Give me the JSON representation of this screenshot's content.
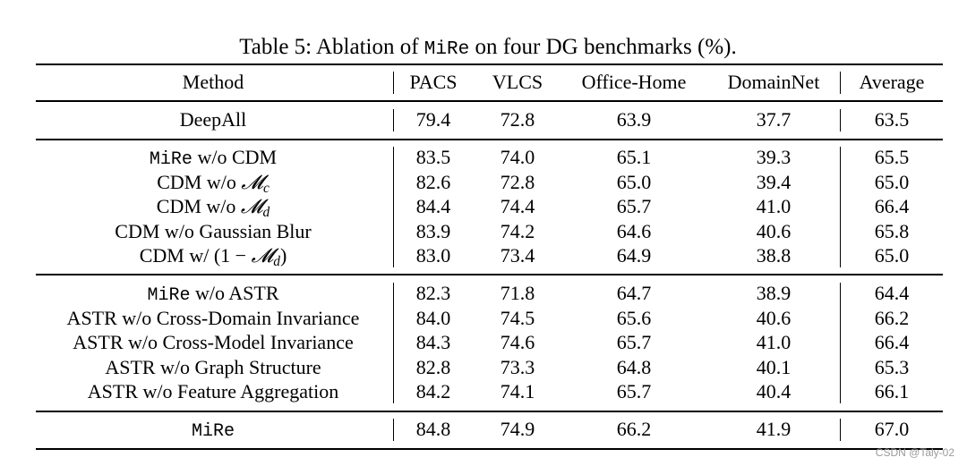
{
  "caption": {
    "prefix": "Table 5: Ablation of ",
    "code": "MiRe",
    "suffix": " on four DG benchmarks (%)."
  },
  "table": {
    "headers": [
      "Method",
      "PACS",
      "VLCS",
      "Office-Home",
      "DomainNet",
      "Average"
    ],
    "groups": [
      [
        {
          "method": "DeepAll",
          "values": [
            "79.4",
            "72.8",
            "63.9",
            "37.7",
            "63.5"
          ]
        }
      ],
      [
        {
          "method_code": "MiRe",
          "method": " w/o CDM",
          "values": [
            "83.5",
            "74.0",
            "65.1",
            "39.3",
            "65.5"
          ]
        },
        {
          "method": "CDM w/o ",
          "math": "𝓜",
          "sub": "c",
          "values": [
            "82.6",
            "72.8",
            "65.0",
            "39.4",
            "65.0"
          ]
        },
        {
          "method": "CDM w/o ",
          "math": "𝓜",
          "sub": "d",
          "values": [
            "84.4",
            "74.4",
            "65.7",
            "41.0",
            "66.4"
          ]
        },
        {
          "method": "CDM w/o Gaussian Blur",
          "values": [
            "83.9",
            "74.2",
            "64.6",
            "40.6",
            "65.8"
          ]
        },
        {
          "method": "CDM w/ (1 − ",
          "math": "𝓜",
          "sub": "d",
          "tail": ")",
          "values": [
            "83.0",
            "73.4",
            "64.9",
            "38.8",
            "65.0"
          ]
        }
      ],
      [
        {
          "method_code": "MiRe",
          "method": " w/o ASTR",
          "values": [
            "82.3",
            "71.8",
            "64.7",
            "38.9",
            "64.4"
          ]
        },
        {
          "method": "ASTR w/o Cross-Domain Invariance",
          "values": [
            "84.0",
            "74.5",
            "65.6",
            "40.6",
            "66.2"
          ]
        },
        {
          "method": "ASTR w/o Cross-Model Invariance",
          "values": [
            "84.3",
            "74.6",
            "65.7",
            "41.0",
            "66.4"
          ]
        },
        {
          "method": "ASTR w/o Graph Structure",
          "values": [
            "82.8",
            "73.3",
            "64.8",
            "40.1",
            "65.3"
          ]
        },
        {
          "method": "ASTR w/o Feature Aggregation",
          "values": [
            "84.2",
            "74.1",
            "65.7",
            "40.4",
            "66.1"
          ]
        }
      ],
      [
        {
          "method_code": "MiRe",
          "method": "",
          "values": [
            "84.8",
            "74.9",
            "66.2",
            "41.9",
            "67.0"
          ]
        }
      ]
    ]
  },
  "watermark": "CSDN @Taly-02"
}
